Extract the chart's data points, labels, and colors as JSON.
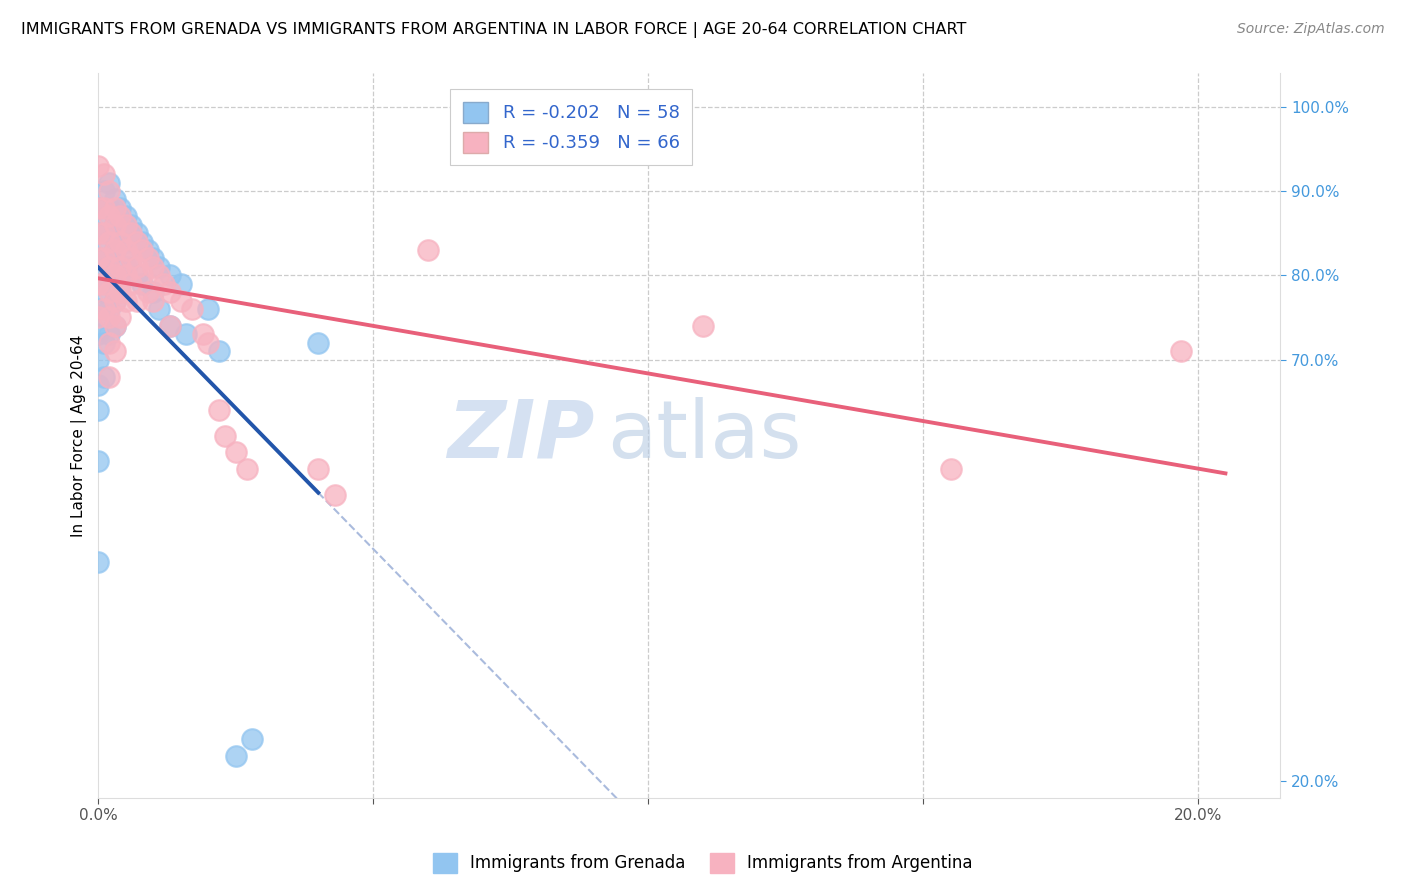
{
  "title": "IMMIGRANTS FROM GRENADA VS IMMIGRANTS FROM ARGENTINA IN LABOR FORCE | AGE 20-64 CORRELATION CHART",
  "source": "Source: ZipAtlas.com",
  "ylabel": "In Labor Force | Age 20-64",
  "xlim": [
    0.0,
    0.215
  ],
  "ylim": [
    0.18,
    1.04
  ],
  "grenada_color": "#92C5F0",
  "argentina_color": "#F7B2C0",
  "grenada_line_color": "#2255AA",
  "argentina_line_color": "#E8607A",
  "dashed_line_color": "#AABBDD",
  "R_grenada": -0.202,
  "N_grenada": 58,
  "R_argentina": -0.359,
  "N_argentina": 66,
  "legend_label_grenada": "Immigrants from Grenada",
  "legend_label_argentina": "Immigrants from Argentina",
  "grenada_x": [
    0.0,
    0.0,
    0.0,
    0.0,
    0.0,
    0.0,
    0.0,
    0.0,
    0.0,
    0.0,
    0.0,
    0.001,
    0.001,
    0.001,
    0.001,
    0.001,
    0.001,
    0.001,
    0.001,
    0.002,
    0.002,
    0.002,
    0.002,
    0.002,
    0.002,
    0.002,
    0.003,
    0.003,
    0.003,
    0.003,
    0.003,
    0.003,
    0.004,
    0.004,
    0.004,
    0.005,
    0.005,
    0.005,
    0.006,
    0.006,
    0.007,
    0.007,
    0.008,
    0.008,
    0.009,
    0.01,
    0.01,
    0.011,
    0.011,
    0.013,
    0.013,
    0.015,
    0.016,
    0.02,
    0.022,
    0.025,
    0.028,
    0.04
  ],
  "grenada_y": [
    0.88,
    0.85,
    0.82,
    0.79,
    0.76,
    0.73,
    0.7,
    0.67,
    0.64,
    0.58,
    0.46,
    0.9,
    0.87,
    0.84,
    0.81,
    0.78,
    0.75,
    0.72,
    0.68,
    0.91,
    0.88,
    0.85,
    0.82,
    0.79,
    0.76,
    0.73,
    0.89,
    0.86,
    0.83,
    0.8,
    0.77,
    0.74,
    0.88,
    0.85,
    0.79,
    0.87,
    0.84,
    0.81,
    0.86,
    0.82,
    0.85,
    0.8,
    0.84,
    0.79,
    0.83,
    0.82,
    0.78,
    0.81,
    0.76,
    0.8,
    0.74,
    0.79,
    0.73,
    0.76,
    0.71,
    0.23,
    0.25,
    0.72
  ],
  "argentina_x": [
    0.0,
    0.0,
    0.0,
    0.0,
    0.0,
    0.0,
    0.001,
    0.001,
    0.001,
    0.001,
    0.001,
    0.001,
    0.002,
    0.002,
    0.002,
    0.002,
    0.002,
    0.002,
    0.002,
    0.002,
    0.003,
    0.003,
    0.003,
    0.003,
    0.003,
    0.003,
    0.003,
    0.004,
    0.004,
    0.004,
    0.004,
    0.004,
    0.005,
    0.005,
    0.005,
    0.005,
    0.006,
    0.006,
    0.006,
    0.007,
    0.007,
    0.007,
    0.008,
    0.008,
    0.009,
    0.009,
    0.01,
    0.01,
    0.011,
    0.012,
    0.013,
    0.013,
    0.015,
    0.017,
    0.019,
    0.02,
    0.022,
    0.023,
    0.025,
    0.027,
    0.04,
    0.043,
    0.06,
    0.11,
    0.155,
    0.197
  ],
  "argentina_y": [
    0.93,
    0.88,
    0.85,
    0.82,
    0.79,
    0.75,
    0.92,
    0.88,
    0.85,
    0.82,
    0.79,
    0.76,
    0.9,
    0.87,
    0.84,
    0.81,
    0.78,
    0.75,
    0.72,
    0.68,
    0.88,
    0.86,
    0.83,
    0.8,
    0.77,
    0.74,
    0.71,
    0.87,
    0.84,
    0.81,
    0.78,
    0.75,
    0.86,
    0.83,
    0.8,
    0.77,
    0.85,
    0.82,
    0.79,
    0.84,
    0.81,
    0.77,
    0.83,
    0.8,
    0.82,
    0.78,
    0.81,
    0.77,
    0.8,
    0.79,
    0.78,
    0.74,
    0.77,
    0.76,
    0.73,
    0.72,
    0.64,
    0.61,
    0.59,
    0.57,
    0.57,
    0.54,
    0.83,
    0.74,
    0.57,
    0.71
  ]
}
